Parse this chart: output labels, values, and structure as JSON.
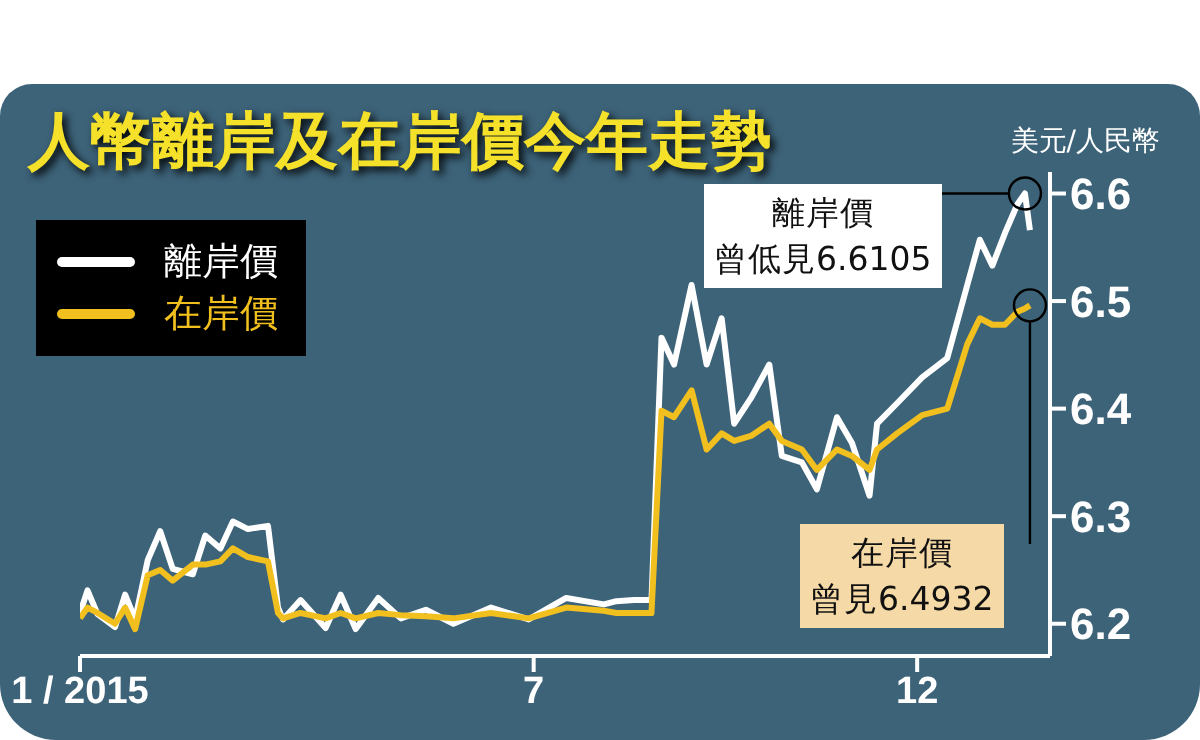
{
  "chart_data": {
    "type": "line",
    "title": "人幣離岸及在岸價今年走勢",
    "ylabel": "美元/人民幣",
    "x": [
      "2015-01-01",
      "2015-01-04",
      "2015-01-08",
      "2015-01-15",
      "2015-01-19",
      "2015-01-23",
      "2015-01-28",
      "2015-02-02",
      "2015-02-07",
      "2015-02-15",
      "2015-02-20",
      "2015-02-26",
      "2015-03-03",
      "2015-03-09",
      "2015-03-17",
      "2015-03-21",
      "2015-03-23",
      "2015-03-30",
      "2015-04-09",
      "2015-04-15",
      "2015-04-21",
      "2015-04-30",
      "2015-05-09",
      "2015-05-19",
      "2015-05-30",
      "2015-06-14",
      "2015-06-29",
      "2015-07-14",
      "2015-07-29",
      "2015-08-03",
      "2015-08-10",
      "2015-08-17",
      "2015-08-21",
      "2015-08-26",
      "2015-09-02",
      "2015-09-08",
      "2015-09-14",
      "2015-09-19",
      "2015-09-26",
      "2015-10-03",
      "2015-10-08",
      "2015-10-16",
      "2015-10-22",
      "2015-10-30",
      "2015-11-05",
      "2015-11-12",
      "2015-11-15",
      "2015-11-23",
      "2015-12-03",
      "2015-12-13",
      "2015-12-21",
      "2015-12-26",
      "2015-12-31",
      "2016-01-05",
      "2016-01-10",
      "2016-01-13",
      "2016-01-15"
    ],
    "series": [
      {
        "name": "離岸價",
        "color": "#ffffff",
        "values": [
          6.21,
          6.231,
          6.209,
          6.197,
          6.227,
          6.204,
          6.259,
          6.286,
          6.251,
          6.246,
          6.282,
          6.27,
          6.295,
          6.288,
          6.291,
          6.215,
          6.204,
          6.222,
          6.196,
          6.227,
          6.195,
          6.224,
          6.205,
          6.213,
          6.2,
          6.215,
          6.204,
          6.224,
          6.218,
          6.221,
          6.222,
          6.222,
          6.466,
          6.441,
          6.515,
          6.441,
          6.484,
          6.386,
          6.411,
          6.441,
          6.356,
          6.35,
          6.325,
          6.392,
          6.368,
          6.319,
          6.386,
          6.405,
          6.429,
          6.447,
          6.515,
          6.557,
          6.533,
          6.563,
          6.59,
          6.6,
          6.566
        ]
      },
      {
        "name": "在岸價",
        "color": "#f2c01e",
        "values": [
          6.205,
          6.215,
          6.21,
          6.2,
          6.215,
          6.195,
          6.245,
          6.25,
          6.24,
          6.255,
          6.255,
          6.258,
          6.27,
          6.262,
          6.258,
          6.21,
          6.205,
          6.21,
          6.205,
          6.21,
          6.205,
          6.21,
          6.208,
          6.207,
          6.205,
          6.21,
          6.205,
          6.215,
          6.212,
          6.21,
          6.21,
          6.21,
          6.398,
          6.392,
          6.417,
          6.362,
          6.377,
          6.37,
          6.375,
          6.386,
          6.37,
          6.362,
          6.343,
          6.362,
          6.356,
          6.343,
          6.362,
          6.377,
          6.394,
          6.4,
          6.46,
          6.484,
          6.478,
          6.478,
          6.49,
          6.493,
          6.496
        ]
      }
    ],
    "xlim": [
      "2015-01-01",
      "2016-01-23"
    ],
    "xticks": [
      {
        "value": "2015-01-01",
        "label": "1 / 2015"
      },
      {
        "value": "2015-07-01",
        "label": "7"
      },
      {
        "value": "2015-12-01",
        "label": "12"
      }
    ],
    "ylim": [
      6.17,
      6.62
    ],
    "yticks": [
      6.2,
      6.3,
      6.4,
      6.5,
      6.6
    ],
    "annotations": [
      "離岸價",
      "曾低見6.6105",
      "在岸價",
      "曾見6.4932"
    ],
    "legend": "top left",
    "grid": false,
    "marker": "none",
    "line_style": "solid"
  }
}
